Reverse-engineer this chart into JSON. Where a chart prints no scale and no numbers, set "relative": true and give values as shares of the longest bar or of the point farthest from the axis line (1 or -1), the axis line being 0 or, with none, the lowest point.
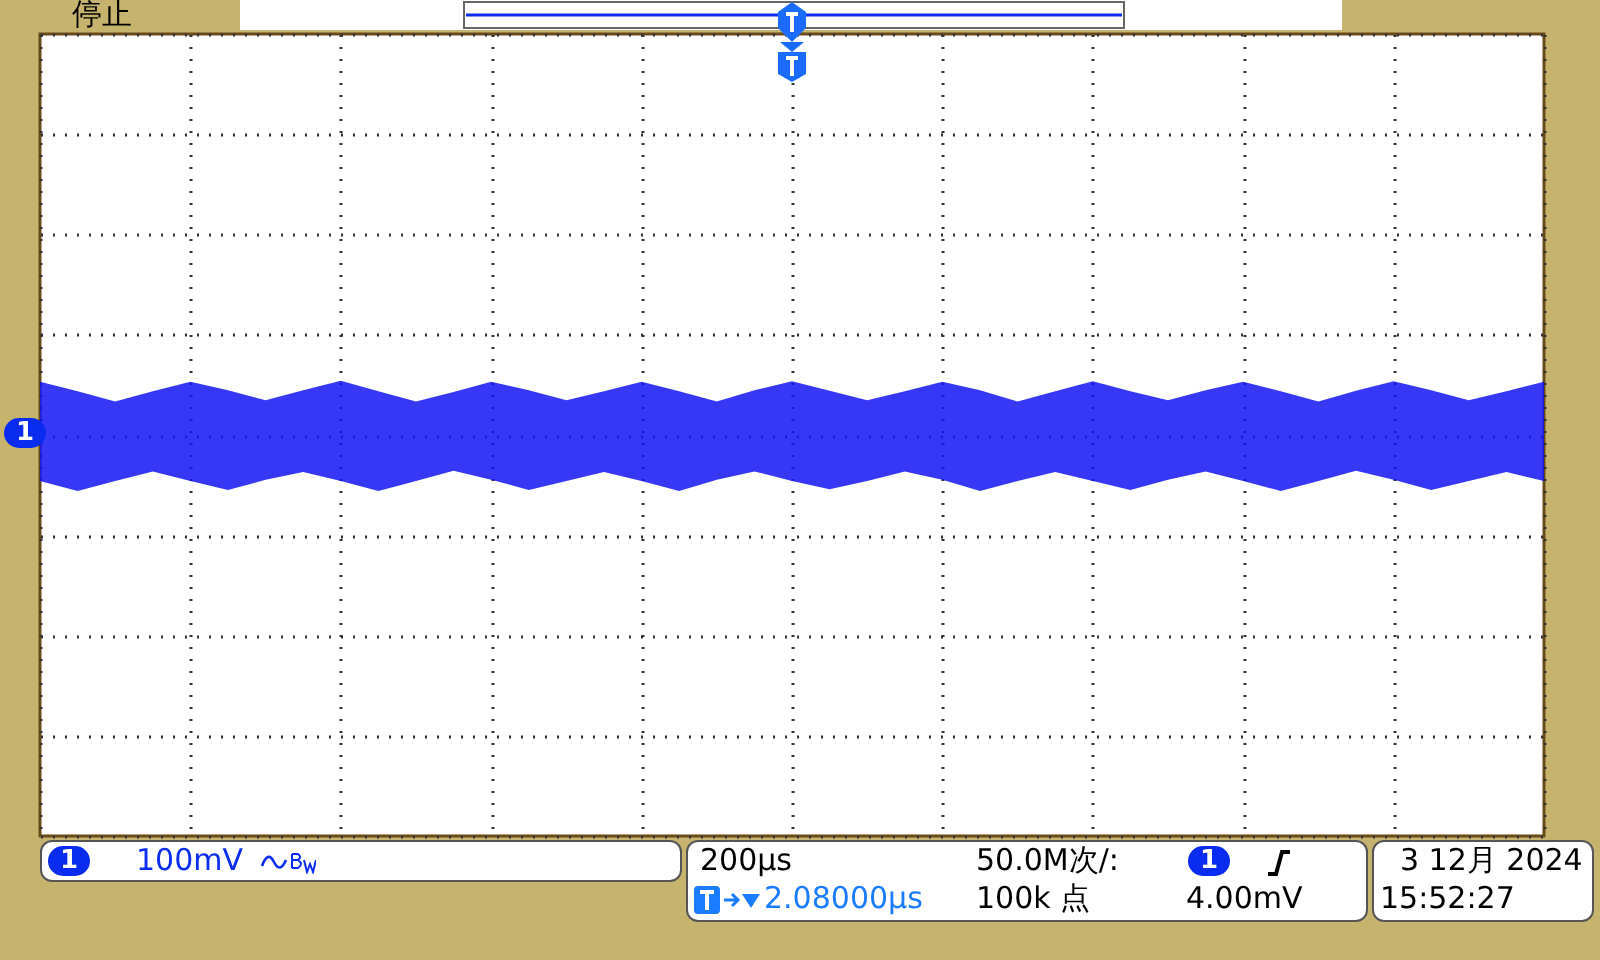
{
  "chart_data": {
    "type": "area",
    "relative": true,
    "grid": true,
    "annotations": [
      "停止",
      "1",
      "1",
      "100mV",
      "200µs",
      "50.0M次/:",
      "1",
      "2.08000µs",
      "100k 点",
      "4.00mV",
      "3 12月 2024",
      "15:52:27"
    ],
    "categories": [
      null,
      null,
      null,
      null,
      null,
      null,
      null,
      null,
      null,
      null,
      null,
      null,
      null,
      null,
      null,
      null,
      null,
      null,
      null,
      null,
      null,
      null,
      null,
      null,
      null,
      null,
      null,
      null,
      null,
      null,
      null,
      null,
      null,
      null,
      null,
      null,
      null,
      null,
      null,
      null,
      null
    ],
    "series": [
      {
        "color": "#1414f5",
        "values": [
          0.95,
          0.78,
          0.6,
          0.78,
          0.95,
          0.8,
          0.62,
          0.8,
          0.97,
          0.78,
          0.6,
          0.77,
          0.95,
          0.8,
          0.62,
          0.78,
          0.95,
          0.78,
          0.6,
          0.8,
          0.96,
          0.79,
          0.62,
          0.78,
          0.95,
          0.8,
          0.6,
          0.78,
          0.96,
          0.78,
          0.62,
          0.8,
          0.95,
          0.78,
          0.6,
          0.79,
          0.96,
          0.8,
          0.62,
          0.78,
          0.95
        ]
      },
      {
        "color": "#1414f5",
        "values": [
          -0.82,
          -1,
          -0.82,
          -0.65,
          -0.82,
          -0.98,
          -0.8,
          -0.66,
          -0.82,
          -1,
          -0.82,
          -0.64,
          -0.8,
          -0.98,
          -0.82,
          -0.66,
          -0.82,
          -1,
          -0.8,
          -0.65,
          -0.82,
          -0.97,
          -0.82,
          -0.65,
          -0.8,
          -1,
          -0.82,
          -0.66,
          -0.82,
          -0.98,
          -0.8,
          -0.65,
          -0.82,
          -1,
          -0.82,
          -0.64,
          -0.8,
          -0.98,
          -0.82,
          -0.66,
          -0.82
        ]
      }
    ]
  }
}
